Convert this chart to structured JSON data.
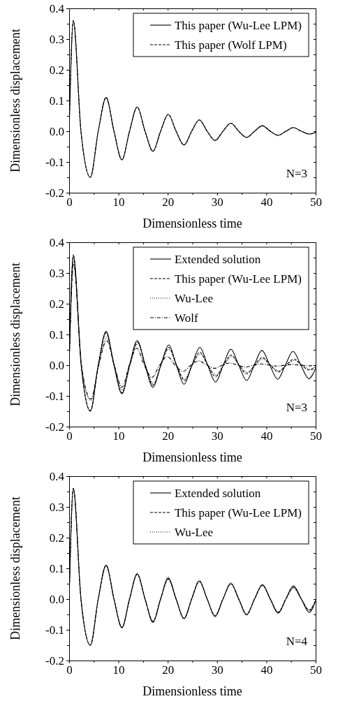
{
  "chart_data": [
    {
      "type": "line",
      "xlabel": "Dimensionless time",
      "ylabel": "Dimensionless displacement",
      "xlim": [
        0,
        50
      ],
      "ylim": [
        -0.2,
        0.4
      ],
      "xticks": [
        0,
        {
          "value": 5,
          "label": null
        },
        10,
        {
          "value": 15,
          "label": null
        },
        20,
        {
          "value": 25,
          "label": null
        },
        30,
        {
          "value": 35,
          "label": null
        },
        40,
        {
          "value": 45,
          "label": null
        },
        50
      ],
      "yticks": [
        -0.2,
        {
          "value": -0.15,
          "label": null
        },
        -0.1,
        {
          "value": -0.05,
          "label": null
        },
        {
          "value": 0,
          "label": "0.0"
        },
        {
          "value": 0.05,
          "label": null
        },
        0.1,
        {
          "value": 0.15,
          "label": null
        },
        0.2,
        {
          "value": 0.25,
          "label": null
        },
        0.3,
        {
          "value": 0.35,
          "label": null
        },
        0.4
      ],
      "legend": "top right",
      "annotations": [
        "N=3"
      ],
      "series": [
        {
          "name": "This paper (Wu-Lee LPM)",
          "color": "#000000",
          "line_style": "solid",
          "x": [
            0,
            0.85,
            2.4,
            4.3,
            5.9,
            7.5,
            9.1,
            10.7,
            12.25,
            13.8,
            15.4,
            17.0,
            18.55,
            20.1,
            21.7,
            23.3,
            24.85,
            26.4,
            28.0,
            29.6,
            31.2,
            32.8,
            34.4,
            36.0,
            37.6,
            39.2,
            40.8,
            42.4,
            43.95,
            45.5,
            47.1,
            48.7,
            50
          ],
          "values": [
            0,
            0.36,
            0,
            -0.15,
            0,
            0.11,
            0,
            -0.093,
            0,
            0.079,
            0,
            -0.065,
            0,
            0.055,
            0,
            -0.045,
            0,
            0.037,
            0,
            -0.03,
            0,
            0.026,
            0,
            -0.02,
            0,
            0.018,
            0,
            -0.013,
            0,
            0.012,
            0,
            -0.009,
            -0.004
          ]
        },
        {
          "name": "This paper (Wolf LPM)",
          "color": "#000000",
          "line_style": "dashed",
          "x": [
            0,
            0.85,
            2.4,
            4.3,
            5.9,
            7.5,
            9.1,
            10.7,
            12.25,
            13.8,
            15.4,
            17.0,
            18.55,
            20.1,
            21.7,
            23.3,
            24.85,
            26.4,
            28.0,
            29.6,
            31.2,
            32.8,
            34.4,
            36.0,
            37.6,
            39.2,
            40.8,
            42.4,
            43.95,
            45.5,
            47.1,
            48.7,
            50
          ],
          "values": [
            0,
            0.36,
            0,
            -0.15,
            0,
            0.11,
            0,
            -0.093,
            0,
            0.079,
            0,
            -0.065,
            0,
            0.055,
            0,
            -0.045,
            0,
            0.037,
            0,
            -0.03,
            0,
            0.026,
            0,
            -0.02,
            0,
            0.018,
            0,
            -0.013,
            0,
            0.012,
            0,
            -0.009,
            -0.004
          ]
        }
      ]
    },
    {
      "type": "line",
      "xlabel": "Dimensionless time",
      "ylabel": "Dimensionless displacement",
      "xlim": [
        0,
        50
      ],
      "ylim": [
        -0.2,
        0.4
      ],
      "xticks": [
        0,
        {
          "value": 5,
          "label": null
        },
        10,
        {
          "value": 15,
          "label": null
        },
        20,
        {
          "value": 25,
          "label": null
        },
        30,
        {
          "value": 35,
          "label": null
        },
        40,
        {
          "value": 45,
          "label": null
        },
        50
      ],
      "yticks": [
        -0.2,
        {
          "value": -0.15,
          "label": null
        },
        -0.1,
        {
          "value": -0.05,
          "label": null
        },
        {
          "value": 0,
          "label": "0.0"
        },
        {
          "value": 0.05,
          "label": null
        },
        0.1,
        {
          "value": 0.15,
          "label": null
        },
        0.2,
        {
          "value": 0.25,
          "label": null
        },
        0.3,
        {
          "value": 0.35,
          "label": null
        },
        0.4
      ],
      "legend": "top right",
      "annotations": [
        "N=3"
      ],
      "series": [
        {
          "name": "Extended solution",
          "color": "#000000",
          "line_style": "solid",
          "x": [
            0,
            0.85,
            2.45,
            4.3,
            5.9,
            7.5,
            9.1,
            10.7,
            12.25,
            13.8,
            15.4,
            17.0,
            18.6,
            20.2,
            21.75,
            23.3,
            24.9,
            26.5,
            28.1,
            29.7,
            31.25,
            32.8,
            34.4,
            36.0,
            37.55,
            39.1,
            40.7,
            42.3,
            43.85,
            45.4,
            47.0,
            48.6,
            50
          ],
          "values": [
            0,
            0.36,
            0,
            -0.15,
            0,
            0.11,
            0,
            -0.093,
            0,
            0.08,
            0,
            -0.072,
            0,
            0.066,
            0,
            -0.062,
            0,
            0.058,
            0,
            -0.055,
            0,
            0.052,
            0,
            -0.05,
            0,
            0.048,
            0,
            -0.046,
            0,
            0.045,
            0,
            -0.044,
            -0.01
          ]
        },
        {
          "name": "This paper (Wu-Lee LPM)",
          "color": "#000000",
          "line_style": "dashed",
          "x": [
            0,
            0.85,
            2.45,
            4.3,
            5.9,
            7.5,
            9.1,
            10.7,
            12.3,
            13.9,
            15.45,
            17.0,
            18.6,
            20.2,
            21.8,
            23.4,
            24.95,
            26.5,
            28.1,
            29.7,
            31.3,
            32.9,
            34.45,
            36.0,
            37.6,
            39.2,
            40.8,
            42.4,
            44.0,
            45.6,
            47.15,
            48.7,
            50
          ],
          "values": [
            0,
            0.355,
            0,
            -0.148,
            0,
            0.105,
            0,
            -0.09,
            0,
            0.075,
            0,
            -0.065,
            0,
            0.058,
            0,
            -0.05,
            0,
            0.042,
            0,
            -0.037,
            0,
            0.033,
            0,
            -0.028,
            0,
            0.025,
            0,
            -0.022,
            0,
            0.02,
            0,
            -0.016,
            -0.006
          ]
        },
        {
          "name": "Wu-Lee",
          "color": "#000000",
          "line_style": "dotted",
          "x": [
            0,
            0.9,
            2.5,
            4.4,
            6.0,
            7.6,
            9.2,
            10.8,
            12.35,
            13.9,
            15.5,
            17.1,
            18.65,
            20.2,
            21.8,
            23.4,
            25.0,
            26.6,
            28.2,
            29.8,
            31.4,
            33.0,
            34.6,
            36.2,
            37.75,
            39.3,
            40.9,
            42.5,
            44.1,
            45.7,
            47.25,
            48.8,
            50
          ],
          "values": [
            0,
            0.34,
            0,
            -0.115,
            0,
            0.09,
            0,
            -0.08,
            0,
            0.07,
            0,
            -0.06,
            0,
            0.052,
            0,
            -0.045,
            0,
            0.036,
            0,
            -0.032,
            0,
            0.028,
            0,
            -0.024,
            0,
            0.02,
            0,
            -0.018,
            0,
            0.015,
            0,
            -0.013,
            -0.004
          ]
        },
        {
          "name": "Wolf",
          "color": "#000000",
          "line_style": "dashdot",
          "x": [
            0,
            0.9,
            2.5,
            4.4,
            6.0,
            7.6,
            9.15,
            10.7,
            12.2,
            13.7,
            15.25,
            16.8,
            18.35,
            19.9,
            21.5,
            23.1,
            24.7,
            26.3,
            27.9,
            29.5,
            31.05,
            32.6,
            34.2,
            35.8,
            37.4,
            39.0,
            40.6,
            42.2,
            43.75,
            45.3,
            46.9,
            48.5,
            50
          ],
          "values": [
            0,
            0.33,
            0,
            -0.11,
            0,
            0.08,
            0,
            -0.072,
            0,
            0.055,
            0,
            -0.04,
            0,
            0.028,
            0,
            -0.02,
            0,
            0.014,
            0,
            -0.01,
            0,
            0.007,
            0,
            -0.006,
            0,
            0.004,
            0,
            -0.003,
            0,
            0.002,
            0,
            -0.002,
            0
          ]
        }
      ]
    },
    {
      "type": "line",
      "xlabel": "Dimensionless time",
      "ylabel": "Dimensionless displacement",
      "xlim": [
        0,
        50
      ],
      "ylim": [
        -0.2,
        0.4
      ],
      "xticks": [
        0,
        {
          "value": 5,
          "label": null
        },
        10,
        {
          "value": 15,
          "label": null
        },
        20,
        {
          "value": 25,
          "label": null
        },
        30,
        {
          "value": 35,
          "label": null
        },
        40,
        {
          "value": 45,
          "label": null
        },
        50
      ],
      "yticks": [
        -0.2,
        {
          "value": -0.15,
          "label": null
        },
        -0.1,
        {
          "value": -0.05,
          "label": null
        },
        {
          "value": 0,
          "label": "0.0"
        },
        {
          "value": 0.05,
          "label": null
        },
        0.1,
        {
          "value": 0.15,
          "label": null
        },
        0.2,
        {
          "value": 0.25,
          "label": null
        },
        0.3,
        {
          "value": 0.35,
          "label": null
        },
        0.4
      ],
      "legend": "top right",
      "annotations": [
        "N=4"
      ],
      "series": [
        {
          "name": "Extended solution",
          "color": "#000000",
          "line_style": "solid",
          "x": [
            0,
            0.85,
            2.4,
            4.3,
            5.9,
            7.5,
            9.1,
            10.7,
            12.25,
            13.8,
            15.4,
            17.0,
            18.55,
            20.1,
            21.7,
            23.3,
            24.85,
            26.4,
            28.0,
            29.6,
            31.2,
            32.8,
            34.4,
            36.0,
            37.6,
            39.2,
            40.8,
            42.4,
            43.95,
            45.5,
            47.1,
            48.7,
            50
          ],
          "values": [
            0,
            0.36,
            0,
            -0.15,
            0,
            0.11,
            0,
            -0.093,
            0,
            0.082,
            0,
            -0.075,
            0,
            0.068,
            0,
            -0.063,
            0,
            0.058,
            0,
            -0.055,
            0,
            0.05,
            0,
            -0.05,
            0,
            0.047,
            0,
            -0.046,
            0,
            0.043,
            0,
            -0.043,
            -0.005
          ]
        },
        {
          "name": "This paper (Wu-Lee LPM)",
          "color": "#000000",
          "line_style": "dashed",
          "x": [
            0,
            0.85,
            2.4,
            4.3,
            5.9,
            7.5,
            9.1,
            10.7,
            12.25,
            13.8,
            15.4,
            17.0,
            18.55,
            20.1,
            21.7,
            23.3,
            24.85,
            26.4,
            28.0,
            29.6,
            31.2,
            32.8,
            34.4,
            36.0,
            37.6,
            39.2,
            40.8,
            42.4,
            43.95,
            45.5,
            47.1,
            48.7,
            50
          ],
          "values": [
            0,
            0.36,
            0,
            -0.15,
            0,
            0.11,
            0,
            -0.092,
            0,
            0.08,
            0,
            -0.072,
            0,
            0.065,
            0,
            -0.062,
            0,
            0.058,
            0,
            -0.055,
            0,
            0.05,
            0,
            -0.05,
            0,
            0.045,
            0,
            -0.043,
            0,
            0.038,
            0,
            -0.036,
            -0.003
          ]
        },
        {
          "name": "Wu-Lee",
          "color": "#000000",
          "line_style": "dotted",
          "x": [
            0,
            0.85,
            2.4,
            4.3,
            5.9,
            7.5,
            9.1,
            10.7,
            12.25,
            13.8,
            15.4,
            17.0,
            18.55,
            20.1,
            21.7,
            23.3,
            24.85,
            26.4,
            28.0,
            29.6,
            31.2,
            32.8,
            34.4,
            36.0,
            37.6,
            39.2,
            40.8,
            42.4,
            43.95,
            45.5,
            47.1,
            48.7,
            50
          ],
          "values": [
            0,
            0.36,
            0,
            -0.15,
            0,
            0.11,
            0,
            -0.094,
            0,
            0.082,
            0,
            -0.077,
            0,
            0.072,
            0,
            -0.066,
            0,
            0.062,
            0,
            -0.058,
            0,
            0.053,
            0,
            -0.053,
            0,
            0.043,
            0,
            -0.042,
            0,
            0.035,
            0,
            -0.035,
            -0.002
          ]
        }
      ]
    }
  ]
}
